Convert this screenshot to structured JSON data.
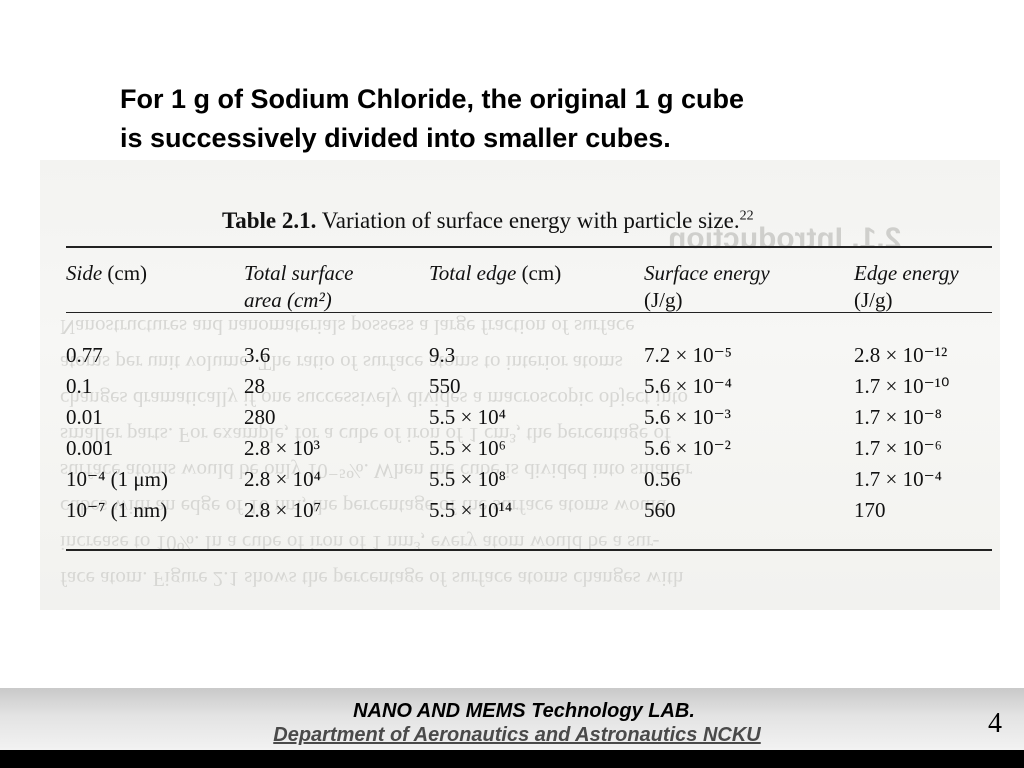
{
  "slide": {
    "heading_line1": "For 1 g of Sodium Chloride, the original 1 g cube",
    "heading_line2": "is successively divided into smaller cubes."
  },
  "table": {
    "label": "Table 2.1.",
    "caption": "Variation of surface energy with particle size.",
    "caption_ref": "22",
    "headers": [
      {
        "line1": "Side",
        "unit1": " (cm)",
        "line2": ""
      },
      {
        "line1": "Total surface",
        "unit1": "",
        "line2": "area (cm²)"
      },
      {
        "line1": "Total edge",
        "unit1": " (cm)",
        "line2": ""
      },
      {
        "line1": "Surface energy",
        "unit1": "",
        "line2": "(J/g)"
      },
      {
        "line1": "Edge energy",
        "unit1": "",
        "line2": "(J/g)"
      }
    ],
    "rows": [
      [
        "0.77",
        "3.6",
        "9.3",
        "7.2 × 10⁻⁵",
        "2.8 × 10⁻¹²"
      ],
      [
        "0.1",
        "28",
        "550",
        "5.6 × 10⁻⁴",
        "1.7 × 10⁻¹⁰"
      ],
      [
        "0.01",
        "280",
        "5.5 × 10⁴",
        "5.6 × 10⁻³",
        "1.7 × 10⁻⁸"
      ],
      [
        "0.001",
        "2.8 × 10³",
        "5.5 × 10⁶",
        "5.6 × 10⁻²",
        "1.7 × 10⁻⁶"
      ],
      [
        "10⁻⁴ (1 μm)",
        "2.8 × 10⁴",
        "5.5 × 10⁸",
        "0.56",
        "1.7 × 10⁻⁴"
      ],
      [
        "10⁻⁷ (1 nm)",
        "2.8 × 10⁷",
        "5.5 × 10¹⁴",
        "560",
        "170"
      ]
    ]
  },
  "footer": {
    "lab": "NANO AND MEMS Technology LAB.",
    "department": "Department of Aeronautics and Astronautics NCKU",
    "page_number": "4"
  }
}
